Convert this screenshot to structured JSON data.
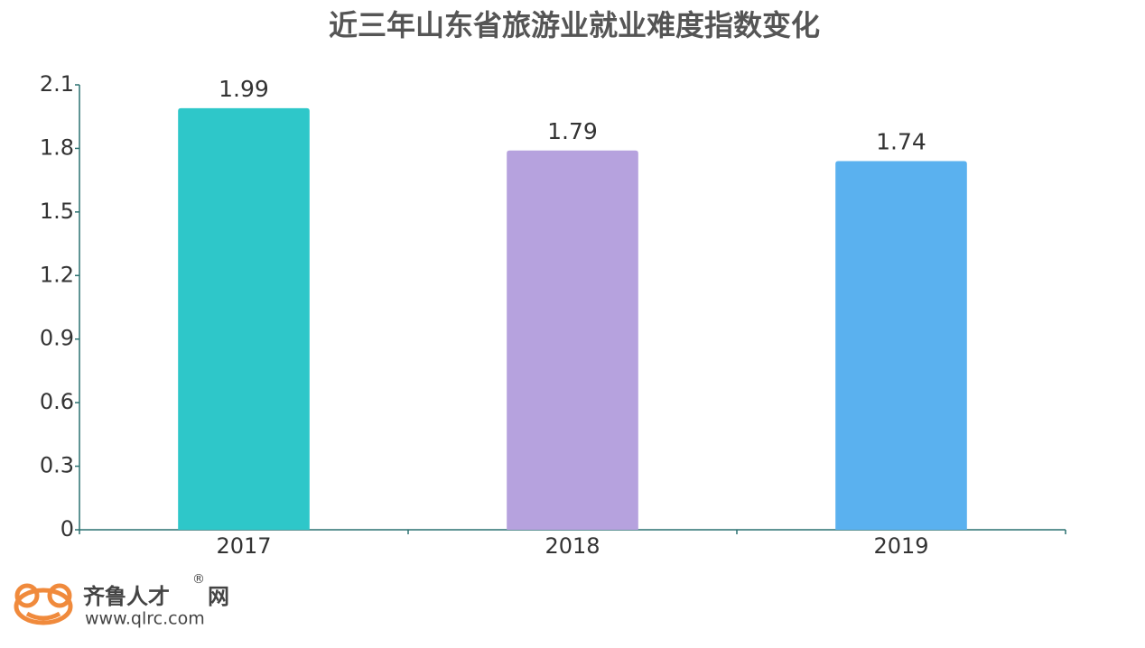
{
  "chart_data": {
    "type": "bar",
    "title": "近三年山东省旅游业就业难度指数变化",
    "categories": [
      "2017",
      "2018",
      "2019"
    ],
    "values": [
      1.99,
      1.79,
      1.74
    ],
    "colors": [
      "#2ec7c9",
      "#b6a2de",
      "#5ab1ef"
    ],
    "ylim": [
      0,
      2.1
    ],
    "yticks": [
      0,
      0.3,
      0.6,
      0.9,
      1.2,
      1.5,
      1.8,
      2.1
    ],
    "grid": false
  },
  "logo": {
    "name": "齐鲁人才",
    "mark": "®",
    "suffix": "网",
    "url": "www.qlrc.com"
  }
}
